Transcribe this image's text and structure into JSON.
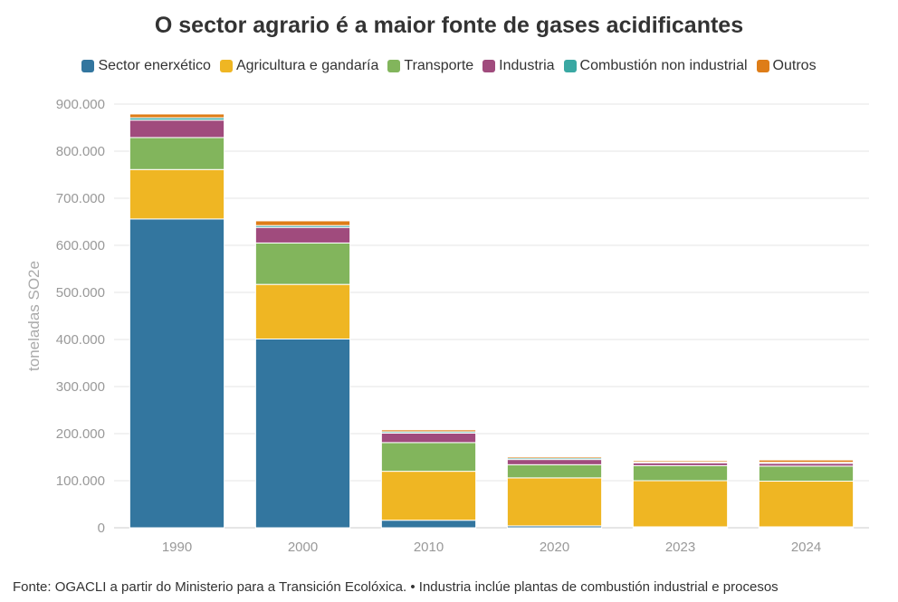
{
  "chart_data": {
    "type": "bar",
    "stacked": true,
    "title": "O sector agrario é a maior fonte de gases acidificantes",
    "ylabel": "toneladas SO2e",
    "xlabel": "",
    "categories": [
      "1990",
      "2000",
      "2010",
      "2020",
      "2023",
      "2024"
    ],
    "ylim": [
      0,
      900000
    ],
    "yticks": [
      {
        "value": 0,
        "label": "0"
      },
      {
        "value": 100000,
        "label": "100.000"
      },
      {
        "value": 200000,
        "label": "200.000"
      },
      {
        "value": 300000,
        "label": "300.000"
      },
      {
        "value": 400000,
        "label": "400.000"
      },
      {
        "value": 500000,
        "label": "500.000"
      },
      {
        "value": 600000,
        "label": "600.000"
      },
      {
        "value": 700000,
        "label": "700.000"
      },
      {
        "value": 800000,
        "label": "800.000"
      },
      {
        "value": 900000,
        "label": "900.000"
      }
    ],
    "grid": true,
    "legend_position": "top",
    "series": [
      {
        "name": "Sector enerxético",
        "color": "#33769f",
        "values": [
          656000,
          401000,
          16000,
          4000,
          2000,
          2000
        ]
      },
      {
        "name": "Agricultura e gandaría",
        "color": "#efb623",
        "values": [
          105000,
          116000,
          104000,
          102000,
          98000,
          97000
        ]
      },
      {
        "name": "Transporte",
        "color": "#82b55c",
        "values": [
          68000,
          88000,
          61000,
          28000,
          32000,
          32000
        ]
      },
      {
        "name": "Industria",
        "color": "#a04b7d",
        "values": [
          37000,
          33000,
          20000,
          11000,
          6000,
          6000
        ]
      },
      {
        "name": "Combustión non industrial",
        "color": "#3aa8a3",
        "values": [
          5000,
          4000,
          3000,
          3000,
          2000,
          2000
        ]
      },
      {
        "name": "Outros",
        "color": "#de7d18",
        "values": [
          8000,
          10000,
          4000,
          3000,
          3000,
          5000
        ]
      }
    ]
  },
  "footer": "Fonte: OGACLI a partir do Ministerio para a Transición Ecolóxica. • Industria inclúe plantas de combustión industrial e procesos"
}
